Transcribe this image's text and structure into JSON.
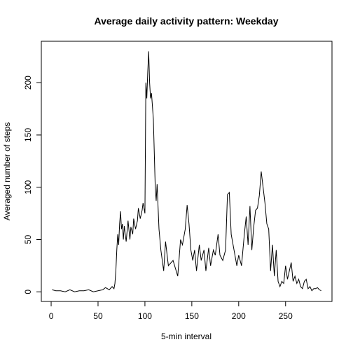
{
  "chart_data": {
    "type": "line",
    "title": "Average daily activity pattern: Weekday",
    "x_label": "5-min interval",
    "y_label": "Averaged number of steps",
    "color": "#000000",
    "x": [
      1,
      5,
      10,
      15,
      20,
      25,
      30,
      35,
      40,
      45,
      50,
      55,
      58,
      62,
      65,
      67,
      68,
      69,
      70,
      71,
      72,
      73,
      74,
      75,
      76,
      77,
      78,
      79,
      80,
      82,
      84,
      85,
      87,
      88,
      90,
      92,
      93,
      95,
      97,
      98,
      100,
      101,
      102,
      103,
      104,
      105,
      106,
      107,
      109,
      111,
      112,
      113,
      115,
      117,
      120,
      122,
      125,
      130,
      135,
      138,
      140,
      143,
      145,
      147,
      149,
      151,
      153,
      155,
      158,
      160,
      163,
      165,
      168,
      170,
      173,
      175,
      178,
      180,
      183,
      186,
      188,
      190,
      192,
      195,
      198,
      200,
      203,
      206,
      208,
      210,
      212,
      214,
      216,
      218,
      220,
      222,
      224,
      226,
      228,
      230,
      232,
      234,
      236,
      238,
      240,
      242,
      244,
      246,
      248,
      250,
      252,
      254,
      256,
      258,
      260,
      262,
      264,
      266,
      268,
      270,
      272,
      274,
      276,
      278,
      280,
      282,
      284,
      286,
      288
    ],
    "values": [
      2,
      1,
      1,
      0,
      2,
      0,
      1,
      1,
      2,
      0,
      1,
      2,
      4,
      2,
      5,
      3,
      8,
      20,
      40,
      55,
      45,
      65,
      77,
      60,
      65,
      50,
      63,
      55,
      48,
      68,
      50,
      62,
      55,
      70,
      60,
      68,
      80,
      70,
      78,
      85,
      75,
      200,
      185,
      210,
      230,
      200,
      185,
      190,
      165,
      100,
      87,
      103,
      60,
      40,
      20,
      48,
      25,
      30,
      15,
      50,
      45,
      60,
      83,
      65,
      40,
      30,
      40,
      20,
      45,
      30,
      40,
      20,
      42,
      25,
      40,
      35,
      55,
      35,
      30,
      40,
      93,
      95,
      55,
      40,
      25,
      35,
      25,
      55,
      72,
      45,
      82,
      40,
      62,
      78,
      80,
      92,
      115,
      100,
      85,
      65,
      60,
      20,
      45,
      15,
      40,
      10,
      5,
      10,
      8,
      25,
      12,
      20,
      28,
      10,
      15,
      8,
      12,
      5,
      3,
      10,
      12,
      3,
      5,
      1,
      3,
      3,
      4,
      2,
      1
    ],
    "xlim": [
      -10.48,
      299.48
    ],
    "xticks": [
      0,
      50,
      100,
      150,
      200,
      250
    ],
    "ylim": [
      -9.2,
      239.6
    ],
    "yticks": [
      0,
      50,
      100,
      150,
      200
    ]
  }
}
